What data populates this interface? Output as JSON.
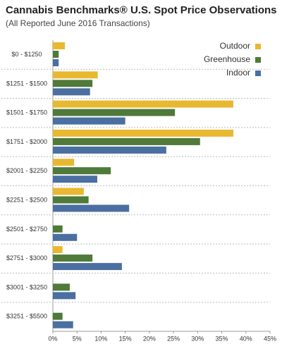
{
  "chart_data": {
    "type": "hbar",
    "title": "Cannabis Benchmarks® U.S. Spot Price Observations",
    "subtitle": "(All Reported June 2016 Transactions)",
    "categories": [
      "$0 - $1250",
      "$1251 - $1500",
      "$1501 - $1750",
      "$1751 - $2000",
      "$2001 - $2250",
      "$2251 - $2500",
      "$2501 - $2750",
      "$2751 - $3000",
      "$3001 - $3250",
      "$3251 - $5500"
    ],
    "series": [
      {
        "name": "Outdoor",
        "color": "#e8b830",
        "values": [
          2.5,
          9.3,
          37.4,
          37.4,
          4.4,
          6.4,
          0,
          2.0,
          0,
          0
        ]
      },
      {
        "name": "Greenhouse",
        "color": "#4f7a3a",
        "values": [
          1.2,
          8.2,
          25.3,
          30.5,
          12.0,
          7.4,
          2.0,
          8.2,
          3.5,
          2.0
        ]
      },
      {
        "name": "Indoor",
        "color": "#4a6fa0",
        "values": [
          1.2,
          7.7,
          15.0,
          23.5,
          9.2,
          15.8,
          5.0,
          14.3,
          4.7,
          4.2
        ]
      }
    ],
    "xlim": [
      0,
      45
    ],
    "xticks": [
      {
        "value": 0,
        "label": "0%"
      },
      {
        "value": 5,
        "label": "5%"
      },
      {
        "value": 10,
        "label": "10%"
      },
      {
        "value": 15,
        "label": "15%"
      },
      {
        "value": 20,
        "label": "20%"
      },
      {
        "value": 25,
        "label": "25%"
      },
      {
        "value": 30,
        "label": "30%"
      },
      {
        "value": 35,
        "label": "35%"
      },
      {
        "value": 40,
        "label": "40%"
      },
      {
        "value": 45,
        "label": "45%"
      }
    ],
    "legend_position": "upper right"
  }
}
